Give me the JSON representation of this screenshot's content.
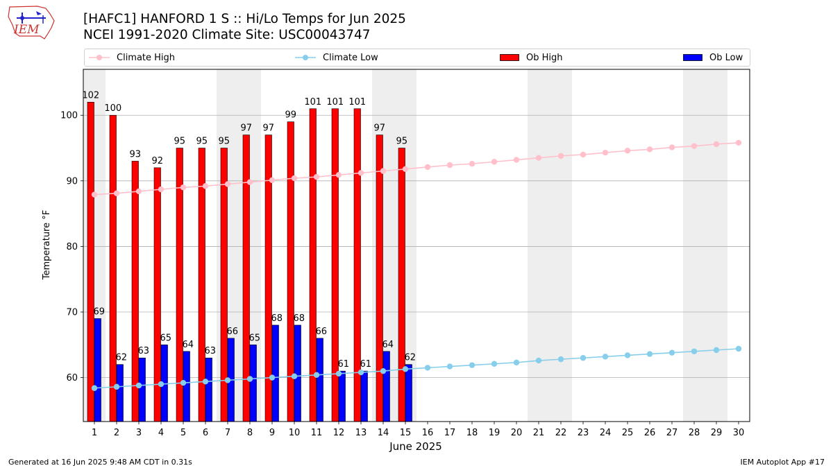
{
  "header": {
    "title_line1": "[HAFC1] HANFORD 1 S :: Hi/Lo Temps for Jun 2025",
    "title_line2": "NCEI 1991-2020 Climate Site: USC00043747"
  },
  "logo": {
    "text": "IEM"
  },
  "footer": {
    "generated": "Generated at 16 Jun 2025 9:48 AM CDT in 0.31s",
    "app": "IEM Autoplot App #17"
  },
  "legend": {
    "placement": "top",
    "items": [
      {
        "label": "Climate High",
        "kind": "line",
        "color": "#ffc0cb"
      },
      {
        "label": "Climate Low",
        "kind": "line",
        "color": "#87ceeb"
      },
      {
        "label": "Ob High",
        "kind": "bar",
        "color": "#ff0000"
      },
      {
        "label": "Ob Low",
        "kind": "bar",
        "color": "#0000ff"
      }
    ]
  },
  "chart_data": {
    "type": "bar",
    "title": "[HAFC1] HANFORD 1 S :: Hi/Lo Temps for Jun 2025",
    "subtitle": "NCEI 1991-2020 Climate Site: USC00043747",
    "xlabel": "June 2025",
    "ylabel": "Temperature °F",
    "ylim": [
      53.3,
      107
    ],
    "yticks": [
      60,
      70,
      80,
      90,
      100
    ],
    "grid": "horizontal",
    "days": [
      1,
      2,
      3,
      4,
      5,
      6,
      7,
      8,
      9,
      10,
      11,
      12,
      13,
      14,
      15,
      16,
      17,
      18,
      19,
      20,
      21,
      22,
      23,
      24,
      25,
      26,
      27,
      28,
      29,
      30
    ],
    "weekend_days": [
      1,
      7,
      8,
      14,
      15,
      21,
      22,
      28,
      29
    ],
    "series": [
      {
        "name": "Ob High",
        "kind": "bar",
        "color": "#ff0000",
        "values": [
          102,
          100,
          93,
          92,
          95,
          95,
          95,
          97,
          97,
          99,
          101,
          101,
          101,
          97,
          95
        ]
      },
      {
        "name": "Ob Low",
        "kind": "bar",
        "color": "#0000ff",
        "values": [
          69,
          62,
          63,
          65,
          64,
          63,
          66,
          65,
          68,
          68,
          66,
          61,
          61,
          64,
          62
        ]
      },
      {
        "name": "Climate High",
        "kind": "line",
        "color": "#ffc0cb",
        "values": [
          87.9,
          88.1,
          88.4,
          88.7,
          89.0,
          89.2,
          89.5,
          89.8,
          90.1,
          90.4,
          90.6,
          90.9,
          91.2,
          91.5,
          91.8,
          92.1,
          92.4,
          92.6,
          92.9,
          93.2,
          93.5,
          93.8,
          94.0,
          94.3,
          94.6,
          94.8,
          95.1,
          95.3,
          95.6,
          95.8
        ]
      },
      {
        "name": "Climate Low",
        "kind": "line",
        "color": "#87ceeb",
        "values": [
          58.4,
          58.6,
          58.8,
          59.0,
          59.2,
          59.4,
          59.6,
          59.8,
          60.0,
          60.2,
          60.4,
          60.6,
          60.8,
          61.0,
          61.3,
          61.5,
          61.7,
          61.9,
          62.1,
          62.3,
          62.6,
          62.8,
          63.0,
          63.2,
          63.4,
          63.6,
          63.8,
          64.0,
          64.2,
          64.4
        ]
      }
    ]
  }
}
